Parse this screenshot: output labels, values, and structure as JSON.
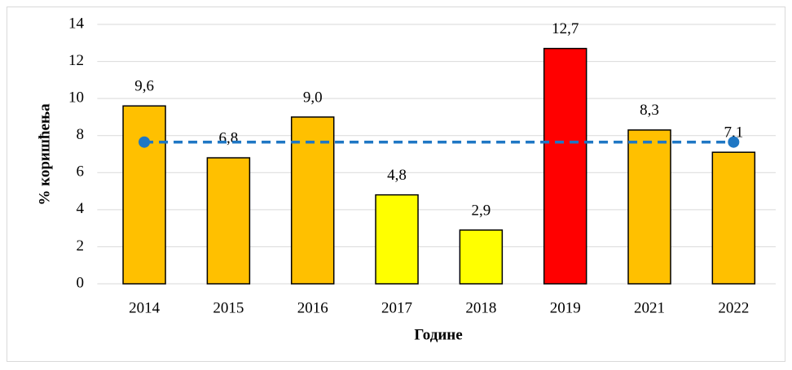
{
  "chart_data": {
    "type": "bar",
    "x_label": "Године",
    "y_label": "% коришћења",
    "categories": [
      "2014",
      "2015",
      "2016",
      "2017",
      "2018",
      "2019",
      "2021",
      "2022"
    ],
    "values": [
      9.6,
      6.8,
      9.0,
      4.8,
      2.9,
      12.7,
      8.3,
      7.1
    ],
    "value_labels": [
      "9,6",
      "6,8",
      "9,0",
      "4,8",
      "2,9",
      "12,7",
      "8,3",
      "7,1"
    ],
    "colors": [
      "#FFC000",
      "#FFC000",
      "#FFC000",
      "#FFFF00",
      "#FFFF00",
      "#FF0000",
      "#FFC000",
      "#FFC000"
    ],
    "reference_line": {
      "value": 7.65,
      "color": "#1F77C4"
    },
    "ylim": [
      0,
      14
    ],
    "yticks": [
      0,
      2,
      4,
      6,
      8,
      10,
      12,
      14
    ],
    "grid": true
  }
}
